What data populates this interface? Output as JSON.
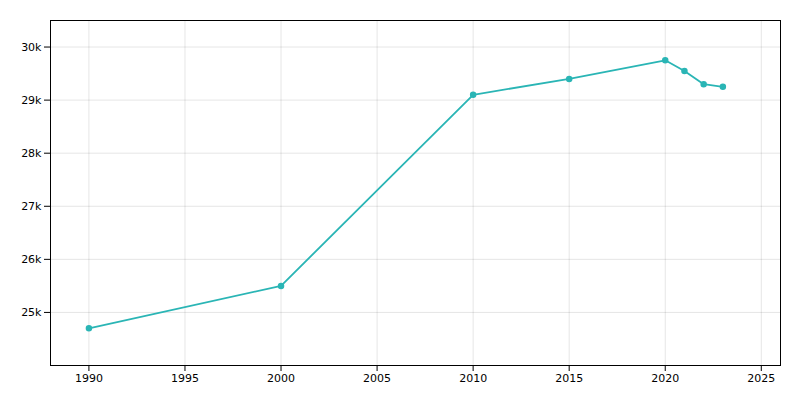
{
  "chart_data": {
    "type": "line",
    "x": [
      1990,
      2000,
      2010,
      2015,
      2020,
      2021,
      2022,
      2023
    ],
    "values": [
      24700,
      25500,
      29100,
      29400,
      29750,
      29550,
      29300,
      29250
    ],
    "color": "#2ab5b5",
    "marker": "circle",
    "xlim": [
      1988,
      2026
    ],
    "xticks": [
      1990,
      1995,
      2000,
      2005,
      2010,
      2015,
      2020,
      2025
    ],
    "ylim": [
      24000,
      30500
    ],
    "yticks": [
      {
        "value": 25000,
        "label": "25k"
      },
      {
        "value": 26000,
        "label": "26k"
      },
      {
        "value": 27000,
        "label": "27k"
      },
      {
        "value": 28000,
        "label": "28k"
      },
      {
        "value": 29000,
        "label": "29k"
      },
      {
        "value": 30000,
        "label": "30k"
      }
    ],
    "grid": true
  }
}
